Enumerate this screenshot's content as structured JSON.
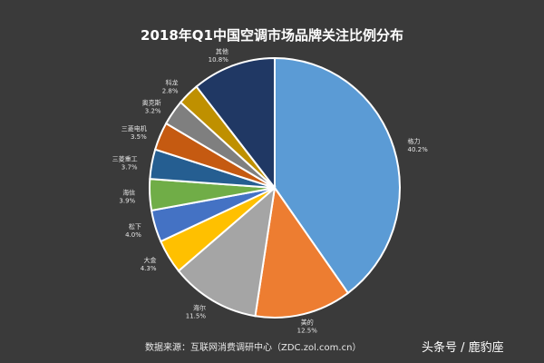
{
  "title": "2018年Q1中国空调市场品牌关注比例分布",
  "source": "数据来源：互联网消费调研中心（ZDC.zol.com.cn）",
  "watermark": "头条号 / 鹿豹座",
  "chart_data": {
    "type": "pie",
    "title": "2018年Q1中国空调市场品牌关注比例分布",
    "start_direction": "top",
    "direction": "clockwise",
    "slices": [
      {
        "name": "格力",
        "value": 40.2,
        "label": "40.2%",
        "color": "#5b9bd5"
      },
      {
        "name": "美的",
        "value": 12.5,
        "label": "12.5%",
        "color": "#ed7d31"
      },
      {
        "name": "海尔",
        "value": 11.5,
        "label": "11.5%",
        "color": "#a5a5a5"
      },
      {
        "name": "大金",
        "value": 4.3,
        "label": "4.3%",
        "color": "#ffc000"
      },
      {
        "name": "松下",
        "value": 4.0,
        "label": "4.0%",
        "color": "#4472c4"
      },
      {
        "name": "海信",
        "value": 3.9,
        "label": "3.9%",
        "color": "#70ad47"
      },
      {
        "name": "三菱重工",
        "value": 3.7,
        "label": "3.7%",
        "color": "#255e91"
      },
      {
        "name": "三菱电机",
        "value": 3.5,
        "label": "3.5%",
        "color": "#c55a11"
      },
      {
        "name": "奥克斯",
        "value": 3.2,
        "label": "3.2%",
        "color": "#7f7f7f"
      },
      {
        "name": "科龙",
        "value": 2.8,
        "label": "2.8%",
        "color": "#bf9000"
      },
      {
        "name": "其他",
        "value": 10.8,
        "label": "10.8%",
        "color": "#203864"
      }
    ]
  }
}
